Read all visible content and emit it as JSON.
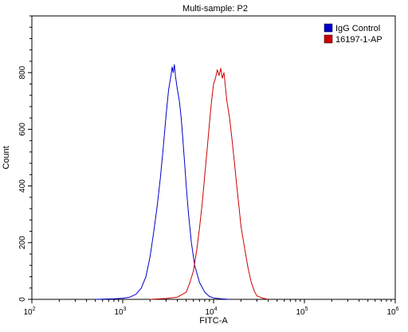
{
  "chart_data": {
    "type": "line",
    "title": "Multi-sample: P2",
    "xlabel": "FITC-A",
    "ylabel": "Count",
    "x_scale": "log",
    "xlim": [
      100,
      1000000
    ],
    "ylim": [
      0,
      1000
    ],
    "x_tick_labels": [
      {
        "value": 100,
        "base": "10",
        "exp": "2"
      },
      {
        "value": 1000,
        "base": "10",
        "exp": "3"
      },
      {
        "value": 10000,
        "base": "10",
        "exp": "4"
      },
      {
        "value": 100000,
        "base": "10",
        "exp": "5"
      },
      {
        "value": 1000000,
        "base": "10",
        "exp": "6"
      }
    ],
    "y_ticks": [
      0,
      200,
      400,
      600,
      800
    ],
    "y_tick_labels": [
      "0",
      "200",
      "400",
      "600",
      "800"
    ],
    "grid": false,
    "legend_position": "top-right",
    "series": [
      {
        "name": "IgG Control",
        "color": "#0000cc",
        "points": [
          [
            500,
            0
          ],
          [
            800,
            2
          ],
          [
            1000,
            4
          ],
          [
            1200,
            8
          ],
          [
            1400,
            18
          ],
          [
            1600,
            40
          ],
          [
            1800,
            80
          ],
          [
            2000,
            150
          ],
          [
            2200,
            240
          ],
          [
            2400,
            330
          ],
          [
            2600,
            430
          ],
          [
            2800,
            540
          ],
          [
            3000,
            650
          ],
          [
            3200,
            740
          ],
          [
            3400,
            790
          ],
          [
            3500,
            820
          ],
          [
            3600,
            800
          ],
          [
            3700,
            828
          ],
          [
            3800,
            790
          ],
          [
            4000,
            740
          ],
          [
            4200,
            700
          ],
          [
            4400,
            640
          ],
          [
            4600,
            560
          ],
          [
            4800,
            480
          ],
          [
            5000,
            400
          ],
          [
            5300,
            300
          ],
          [
            5700,
            200
          ],
          [
            6200,
            120
          ],
          [
            7000,
            60
          ],
          [
            8000,
            25
          ],
          [
            9000,
            10
          ],
          [
            10000,
            5
          ],
          [
            12000,
            2
          ],
          [
            15000,
            0
          ]
        ]
      },
      {
        "name": "16197-1-AP",
        "color": "#cc0000",
        "points": [
          [
            2000,
            0
          ],
          [
            3000,
            3
          ],
          [
            4000,
            8
          ],
          [
            5000,
            25
          ],
          [
            5500,
            60
          ],
          [
            6000,
            100
          ],
          [
            6500,
            170
          ],
          [
            7000,
            250
          ],
          [
            7500,
            340
          ],
          [
            8000,
            440
          ],
          [
            8500,
            530
          ],
          [
            9000,
            620
          ],
          [
            9500,
            700
          ],
          [
            10000,
            760
          ],
          [
            10500,
            780
          ],
          [
            11000,
            810
          ],
          [
            11500,
            790
          ],
          [
            12000,
            815
          ],
          [
            12500,
            780
          ],
          [
            13000,
            800
          ],
          [
            13500,
            750
          ],
          [
            14000,
            700
          ],
          [
            15000,
            640
          ],
          [
            16000,
            560
          ],
          [
            17000,
            480
          ],
          [
            18000,
            400
          ],
          [
            19000,
            330
          ],
          [
            20000,
            260
          ],
          [
            22000,
            180
          ],
          [
            24000,
            110
          ],
          [
            26000,
            60
          ],
          [
            28000,
            30
          ],
          [
            30000,
            12
          ],
          [
            35000,
            4
          ],
          [
            40000,
            0
          ]
        ]
      }
    ]
  }
}
